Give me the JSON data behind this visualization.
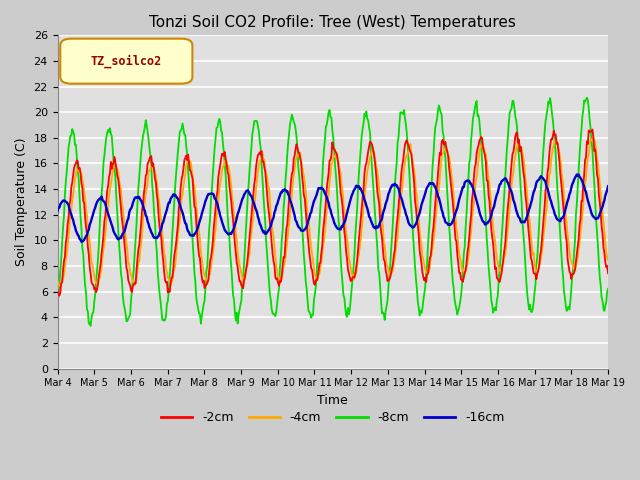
{
  "title": "Tonzi Soil CO2 Profile: Tree (West) Temperatures",
  "xlabel": "Time",
  "ylabel": "Soil Temperature (C)",
  "ylim": [
    0,
    26
  ],
  "yticks": [
    0,
    2,
    4,
    6,
    8,
    10,
    12,
    14,
    16,
    18,
    20,
    22,
    24,
    26
  ],
  "legend_label": "TZ_soilco2",
  "series_labels": [
    "-2cm",
    "-4cm",
    "-8cm",
    "-16cm"
  ],
  "series_colors": [
    "#ff0000",
    "#ffaa00",
    "#00dd00",
    "#0000cc"
  ],
  "background_color": "#cccccc",
  "plot_bg_color": "#e0e0e0",
  "xtick_labels": [
    "Mar 4",
    "Mar 5",
    "Mar 6",
    "Mar 7",
    "Mar 8",
    "Mar 9",
    "Mar 10",
    "Mar 11",
    "Mar 12",
    "Mar 13",
    "Mar 14",
    "Mar 15",
    "Mar 16",
    "Mar 17",
    "Mar 18",
    "Mar 19"
  ],
  "n_points": 600
}
